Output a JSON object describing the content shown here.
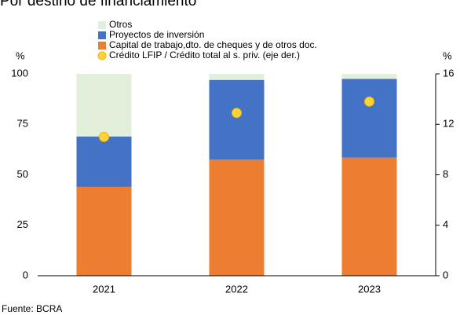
{
  "chart_data": {
    "type": "bar",
    "stacked": true,
    "title": "Por destino de financiamiento",
    "y_label": "%",
    "y2_label": "%",
    "source": "Fuente: BCRA",
    "categories": [
      "2021",
      "2022",
      "2023"
    ],
    "series": [
      {
        "name": "Capital de trabajo,dto. de cheques y de otros doc.",
        "color": "#ed7d31",
        "values": [
          44,
          57.5,
          58.5
        ]
      },
      {
        "name": "Proyectos de inversión",
        "color": "#4472c4",
        "values": [
          25,
          39.5,
          39
        ]
      },
      {
        "name": "Otros",
        "color": "#e2efda",
        "values": [
          31,
          3,
          2.5
        ]
      },
      {
        "name": "Crédito LFIP / Crédito total al s. priv. (eje der.)",
        "color": "#ffd43b",
        "type": "scatter",
        "axis": "y2",
        "values": [
          11,
          12.9,
          13.8
        ]
      }
    ],
    "ylim": [
      0,
      100
    ],
    "yticks": [
      0,
      25,
      50,
      75,
      100
    ],
    "y2lim": [
      0,
      16
    ],
    "y2ticks": [
      0,
      4,
      8,
      12,
      16
    ]
  }
}
